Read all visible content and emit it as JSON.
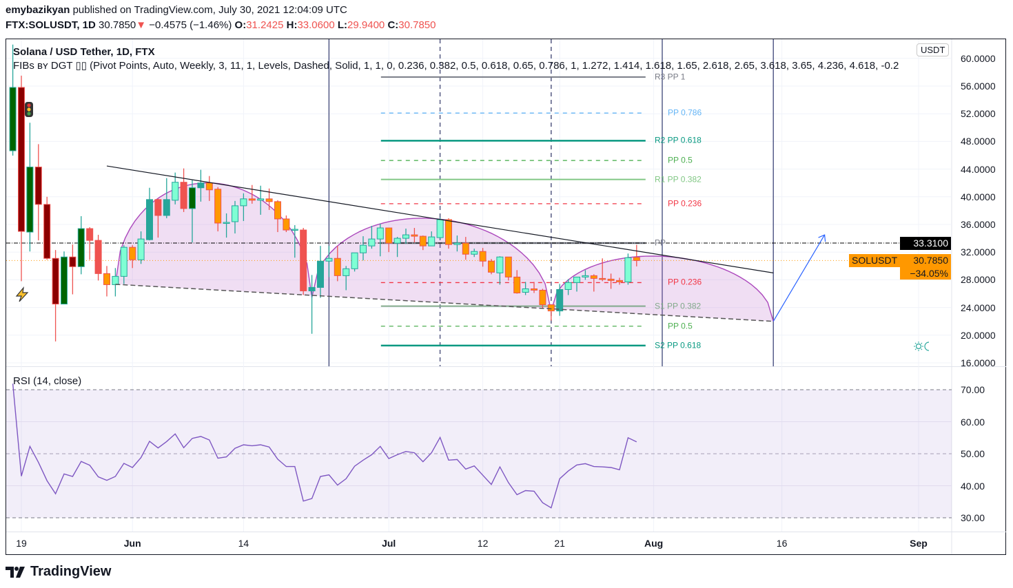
{
  "header": {
    "author": "emybazikyan",
    "published": "published on TradingView.com, July 30, 2021 12:04:09 UTC",
    "symbol": "FTX:SOLUSDT, 1D",
    "last": "30.7850",
    "change": "−0.4575 (−1.46%)",
    "o_label": "O:",
    "o": "31.2425",
    "h_label": "H:",
    "h": "33.0600",
    "l_label": "L:",
    "l": "29.9400",
    "c_label": "C:",
    "c": "30.7850",
    "down_arrow": "▼"
  },
  "legend": {
    "title": "Solana / USD Tether, 1D, FTX",
    "indicator": "FIBs ʙʏ DGT ▯▯ (Pivot Points, Auto, Weekly, 3, 11, 1, Levels, Dashed, Solid, 1, 1, 0, 0.236, 0.382, 0.5, 0.618, 0.65, 0.786, 1, 1.272, 1.414, 1.618, 1.65, 2.618, 2.65, 3.618, 3.65, 4.236, 4.618, -0.2",
    "rsi_title": "RSI (14, close)"
  },
  "price_axis": {
    "currency": "USDT",
    "ticks": [
      "60.0000",
      "56.0000",
      "52.0000",
      "48.0000",
      "44.0000",
      "40.0000",
      "36.0000",
      "32.0000",
      "28.0000",
      "24.0000",
      "20.0000",
      "16.0000"
    ],
    "pp_badge": "33.3100",
    "last_symbol": "SOLUSDT",
    "last_price": "30.7850",
    "last_pct": "−34.05%"
  },
  "rsi_axis": {
    "ticks": [
      "70.00",
      "60.00",
      "50.00",
      "40.00",
      "30.00"
    ]
  },
  "time_axis": [
    {
      "label": "19",
      "date": "2021-05-19",
      "month": false
    },
    {
      "label": "Jun",
      "date": "2021-06-01",
      "month": true
    },
    {
      "label": "14",
      "date": "2021-06-14",
      "month": false
    },
    {
      "label": "Jul",
      "date": "2021-07-01",
      "month": true
    },
    {
      "label": "12",
      "date": "2021-07-12",
      "month": false
    },
    {
      "label": "21",
      "date": "2021-07-21",
      "month": false
    },
    {
      "label": "Aug",
      "date": "2021-08-01",
      "month": true
    },
    {
      "label": "16",
      "date": "2021-08-16",
      "month": false
    },
    {
      "label": "Sep",
      "date": "2021-09-01",
      "month": true
    }
  ],
  "footer": {
    "brand": "TradingView"
  },
  "icons": {
    "traffic_light": "traffic-light-icon",
    "lightning": "lightning-icon",
    "sun_moon": "sun-moon-icon",
    "logo": "tradingview-logo"
  },
  "chart_data": {
    "type": "candlestick",
    "title": "Solana / USD Tether, 1D, FTX",
    "ylim": [
      15,
      61
    ],
    "grid": true,
    "candle_colors": {
      "dg": "#006400",
      "dr": "#8b0000",
      "r": "#ef5350",
      "o": "#ff9800",
      "a": "#7fffd4",
      "t": "#26a69a"
    },
    "candles_columns": [
      "date",
      "open",
      "high",
      "low",
      "close",
      "color"
    ],
    "candles": [
      [
        "2021-05-18",
        46.65,
        62.0,
        45.95,
        55.8,
        "dg"
      ],
      [
        "2021-05-19",
        55.8,
        57.5,
        27.8,
        35.0,
        "dr"
      ],
      [
        "2021-05-20",
        34.9,
        50.7,
        32.1,
        44.3,
        "dg"
      ],
      [
        "2021-05-21",
        44.3,
        47.6,
        33.7,
        38.9,
        "dr"
      ],
      [
        "2021-05-22",
        38.9,
        40.0,
        30.9,
        31.1,
        "dr"
      ],
      [
        "2021-05-23",
        31.1,
        32.3,
        19.1,
        24.5,
        "dr"
      ],
      [
        "2021-05-24",
        24.5,
        32.1,
        24.5,
        31.3,
        "dg"
      ],
      [
        "2021-05-25",
        31.3,
        33.1,
        25.9,
        29.9,
        "dr"
      ],
      [
        "2021-05-26",
        29.9,
        37.2,
        28.8,
        35.4,
        "dg"
      ],
      [
        "2021-05-27",
        35.4,
        35.6,
        30.9,
        33.7,
        "r"
      ],
      [
        "2021-05-28",
        33.7,
        34.5,
        27.9,
        28.9,
        "r"
      ],
      [
        "2021-05-29",
        28.9,
        30.0,
        25.6,
        27.3,
        "o"
      ],
      [
        "2021-05-30",
        27.3,
        29.7,
        25.6,
        28.5,
        "a"
      ],
      [
        "2021-05-31",
        28.5,
        33.0,
        27.4,
        32.7,
        "a"
      ],
      [
        "2021-06-01",
        32.7,
        33.0,
        29.7,
        30.9,
        "o"
      ],
      [
        "2021-06-02",
        30.9,
        35.0,
        30.3,
        33.9,
        "a"
      ],
      [
        "2021-06-03",
        33.8,
        41.3,
        33.7,
        39.6,
        "t"
      ],
      [
        "2021-06-04",
        39.6,
        39.7,
        34.1,
        37.3,
        "r"
      ],
      [
        "2021-06-05",
        37.3,
        42.7,
        36.9,
        39.6,
        "t"
      ],
      [
        "2021-06-06",
        39.5,
        43.5,
        38.9,
        42.1,
        "a"
      ],
      [
        "2021-06-07",
        42.1,
        44.1,
        37.8,
        38.3,
        "r"
      ],
      [
        "2021-06-08",
        38.3,
        42.4,
        33.4,
        41.3,
        "dg"
      ],
      [
        "2021-06-09",
        41.3,
        43.9,
        39.3,
        42.0,
        "t"
      ],
      [
        "2021-06-10",
        42.0,
        43.0,
        39.4,
        41.0,
        "o"
      ],
      [
        "2021-06-11",
        41.1,
        41.4,
        35.0,
        36.2,
        "o"
      ],
      [
        "2021-06-12",
        36.2,
        37.6,
        34.1,
        36.3,
        "a"
      ],
      [
        "2021-06-13",
        36.4,
        39.4,
        34.7,
        38.7,
        "a"
      ],
      [
        "2021-06-14",
        38.7,
        40.5,
        36.5,
        39.7,
        "a"
      ],
      [
        "2021-06-15",
        39.7,
        41.7,
        39.0,
        39.5,
        "o"
      ],
      [
        "2021-06-16",
        39.5,
        41.6,
        37.4,
        39.7,
        "a"
      ],
      [
        "2021-06-17",
        39.7,
        41.2,
        38.1,
        39.3,
        "o"
      ],
      [
        "2021-06-18",
        39.3,
        39.5,
        34.9,
        36.8,
        "o"
      ],
      [
        "2021-06-19",
        36.8,
        37.3,
        34.9,
        35.2,
        "o"
      ],
      [
        "2021-06-20",
        35.2,
        35.9,
        31.2,
        35.3,
        "a"
      ],
      [
        "2021-06-21",
        35.2,
        35.5,
        25.8,
        26.4,
        "r"
      ],
      [
        "2021-06-22",
        26.4,
        28.7,
        20.2,
        26.9,
        "t"
      ],
      [
        "2021-06-23",
        26.9,
        32.9,
        25.4,
        30.7,
        "t"
      ],
      [
        "2021-06-24",
        30.7,
        32.9,
        28.4,
        31.1,
        "a"
      ],
      [
        "2021-06-25",
        31.1,
        32.9,
        27.8,
        28.6,
        "o"
      ],
      [
        "2021-06-26",
        28.6,
        30.0,
        26.5,
        29.6,
        "a"
      ],
      [
        "2021-06-27",
        29.6,
        31.9,
        29.2,
        31.9,
        "a"
      ],
      [
        "2021-06-28",
        31.9,
        34.3,
        30.8,
        33.0,
        "a"
      ],
      [
        "2021-06-29",
        32.9,
        35.8,
        32.5,
        33.9,
        "a"
      ],
      [
        "2021-06-30",
        33.9,
        36.1,
        31.4,
        35.5,
        "a"
      ],
      [
        "2021-07-01",
        35.5,
        35.5,
        32.0,
        33.3,
        "o"
      ],
      [
        "2021-07-02",
        33.3,
        34.2,
        31.3,
        34.0,
        "a"
      ],
      [
        "2021-07-03",
        34.0,
        35.4,
        33.2,
        34.5,
        "a"
      ],
      [
        "2021-07-04",
        34.5,
        35.5,
        33.4,
        34.3,
        "o"
      ],
      [
        "2021-07-05",
        34.3,
        34.4,
        32.3,
        32.9,
        "o"
      ],
      [
        "2021-07-06",
        32.9,
        35.0,
        32.9,
        34.2,
        "a"
      ],
      [
        "2021-07-07",
        34.1,
        37.0,
        33.8,
        36.7,
        "a"
      ],
      [
        "2021-07-08",
        36.7,
        36.9,
        32.5,
        33.1,
        "o"
      ],
      [
        "2021-07-09",
        33.1,
        34.4,
        32.1,
        33.3,
        "a"
      ],
      [
        "2021-07-10",
        33.3,
        34.2,
        30.9,
        31.7,
        "o"
      ],
      [
        "2021-07-11",
        31.7,
        32.5,
        31.3,
        32.1,
        "a"
      ],
      [
        "2021-07-12",
        32.1,
        32.6,
        29.9,
        30.7,
        "o"
      ],
      [
        "2021-07-13",
        30.7,
        31.0,
        28.8,
        29.1,
        "o"
      ],
      [
        "2021-07-14",
        29.0,
        31.4,
        27.3,
        31.3,
        "a"
      ],
      [
        "2021-07-15",
        31.3,
        31.3,
        27.9,
        28.4,
        "o"
      ],
      [
        "2021-07-16",
        28.4,
        29.4,
        26.0,
        26.1,
        "o"
      ],
      [
        "2021-07-17",
        26.2,
        27.7,
        25.8,
        26.7,
        "a"
      ],
      [
        "2021-07-18",
        26.7,
        27.7,
        26.1,
        26.5,
        "o"
      ],
      [
        "2021-07-19",
        26.5,
        26.7,
        23.9,
        24.4,
        "o"
      ],
      [
        "2021-07-20",
        24.4,
        24.4,
        22.1,
        23.5,
        "o"
      ],
      [
        "2021-07-21",
        23.5,
        27.4,
        22.8,
        26.6,
        "t"
      ],
      [
        "2021-07-22",
        26.6,
        28.1,
        25.8,
        27.6,
        "a"
      ],
      [
        "2021-07-23",
        27.6,
        28.4,
        26.3,
        28.4,
        "a"
      ],
      [
        "2021-07-24",
        28.4,
        29.4,
        28.0,
        28.6,
        "a"
      ],
      [
        "2021-07-25",
        28.6,
        28.8,
        26.3,
        28.2,
        "o"
      ],
      [
        "2021-07-26",
        28.2,
        31.1,
        27.8,
        28.1,
        "o"
      ],
      [
        "2021-07-27",
        28.1,
        28.9,
        26.7,
        27.9,
        "o"
      ],
      [
        "2021-07-28",
        27.9,
        28.3,
        27.3,
        27.7,
        "o"
      ],
      [
        "2021-07-29",
        27.7,
        31.8,
        27.3,
        31.2,
        "a"
      ],
      [
        "2021-07-30",
        31.2425,
        33.06,
        29.94,
        30.785,
        "o"
      ]
    ],
    "last_price": 30.785,
    "pp_level": 33.31,
    "pivot_levels": [
      {
        "label": "R3 PP 1",
        "price": 57.3,
        "color": "#787b86",
        "style": "solid"
      },
      {
        "label": "PP 0.786",
        "price": 52.1,
        "color": "#64b5f6",
        "style": "dashed"
      },
      {
        "label": "R2 PP 0.618",
        "price": 48.1,
        "color": "#089981",
        "style": "solid"
      },
      {
        "label": "PP 0.5",
        "price": 45.25,
        "color": "#4caf50",
        "style": "dashed"
      },
      {
        "label": "R1 PP 0.382",
        "price": 42.5,
        "color": "#81c784",
        "style": "solid"
      },
      {
        "label": "PP 0.236",
        "price": 39.0,
        "color": "#f23645",
        "style": "dashed"
      },
      {
        "label": "PP",
        "price": 33.31,
        "color": "#787b86",
        "style": "solid"
      },
      {
        "label": "PP 0.236",
        "price": 27.6,
        "color": "#f23645",
        "style": "dashed"
      },
      {
        "label": "S1 PP 0.382",
        "price": 24.2,
        "color": "#81a98a",
        "style": "solid"
      },
      {
        "label": "PP 0.5",
        "price": 21.3,
        "color": "#4caf50",
        "style": "dashed"
      },
      {
        "label": "S2 PP 0.618",
        "price": 18.5,
        "color": "#089981",
        "style": "solid"
      }
    ],
    "pivot_range": [
      "2021-06-30",
      "2021-07-30"
    ],
    "vertical_lines": [
      {
        "date": "2021-06-24",
        "style": "solid"
      },
      {
        "date": "2021-07-07",
        "style": "dashed"
      },
      {
        "date": "2021-07-20",
        "style": "dashed"
      },
      {
        "date": "2021-08-02",
        "style": "solid"
      },
      {
        "date": "2021-08-15",
        "style": "solid"
      }
    ],
    "trendline_upper": [
      [
        "2021-05-29",
        44.45
      ],
      [
        "2021-08-15",
        29.0
      ]
    ],
    "trendline_lower": [
      [
        "2021-05-30",
        27.35
      ],
      [
        "2021-08-15",
        22.0
      ]
    ],
    "arcs": [
      {
        "start": [
          "2021-05-30",
          27.35
        ],
        "peak": [
          "2021-06-09",
          42.1
        ],
        "end": [
          "2021-06-22",
          25.45
        ]
      },
      {
        "start": [
          "2021-06-22",
          25.45
        ],
        "peak": [
          "2021-07-07",
          36.8
        ],
        "end": [
          "2021-07-20",
          23.5
        ]
      },
      {
        "start": [
          "2021-07-20",
          23.5
        ],
        "peak": [
          "2021-08-02",
          31.4
        ],
        "end": [
          "2021-08-15",
          22.0
        ]
      }
    ],
    "projection_arrow": [
      [
        "2021-08-15",
        22.0
      ],
      [
        "2021-08-21",
        34.5
      ]
    ],
    "rsi": {
      "name": "RSI (14, close)",
      "ylim": [
        25,
        75
      ],
      "bands": [
        70,
        50,
        30
      ],
      "values": [
        71.9,
        43.0,
        52.3,
        47.3,
        41.6,
        37.5,
        43.7,
        42.9,
        47.6,
        46.4,
        42.8,
        41.7,
        42.9,
        47.0,
        45.7,
        48.8,
        53.9,
        51.8,
        53.8,
        56.2,
        51.9,
        54.8,
        55.4,
        54.3,
        48.6,
        49.0,
        51.7,
        52.8,
        52.5,
        52.8,
        52.1,
        48.3,
        46.0,
        46.0,
        35.2,
        36.0,
        42.9,
        43.4,
        40.2,
        42.2,
        46.1,
        48.0,
        49.7,
        52.3,
        48.5,
        49.7,
        50.7,
        50.3,
        47.5,
        50.3,
        55.1,
        48.0,
        48.2,
        45.2,
        46.2,
        43.3,
        40.4,
        45.9,
        41.0,
        37.2,
        38.5,
        38.3,
        34.7,
        33.1,
        42.2,
        44.6,
        46.5,
        46.9,
        46.0,
        45.9,
        45.7,
        45.0,
        55.0,
        53.7
      ]
    }
  }
}
